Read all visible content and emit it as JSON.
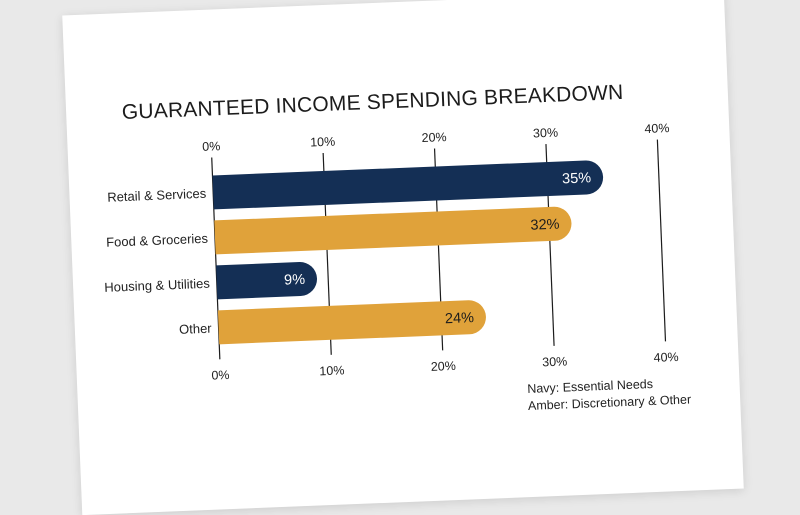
{
  "chart_data": {
    "type": "bar",
    "orientation": "horizontal",
    "title": "GUARANTEED INCOME SPENDING BREAKDOWN",
    "xlabel": "",
    "ylabel": "",
    "categories": [
      "Retail & Services",
      "Food & Groceries",
      "Housing & Utilities",
      "Other"
    ],
    "values": [
      35,
      32,
      9,
      24
    ],
    "value_labels": [
      "35%",
      "32%",
      "9%",
      "24%"
    ],
    "bar_colors": [
      "#142f55",
      "#e0a23a",
      "#142f55",
      "#e0a23a"
    ],
    "label_colors": [
      "#ffffff",
      "#1c1c1c",
      "#ffffff",
      "#1c1c1c"
    ],
    "xlim": [
      0,
      40
    ],
    "x_ticks": [
      0,
      10,
      20,
      30,
      40
    ],
    "x_tick_labels": [
      "0%",
      "10%",
      "20%",
      "30%",
      "40%"
    ],
    "grid": true,
    "tick_label_position": "top-and-bottom",
    "legend": {
      "placement": "bottom-right",
      "lines": [
        "Navy: Essential Needs",
        "Amber: Discretionary & Other"
      ]
    }
  },
  "colors": {
    "background": "#e9e9e9",
    "paper": "#ffffff",
    "navy": "#142f55",
    "amber": "#e0a23a",
    "gridline": "#1c1c1c"
  }
}
